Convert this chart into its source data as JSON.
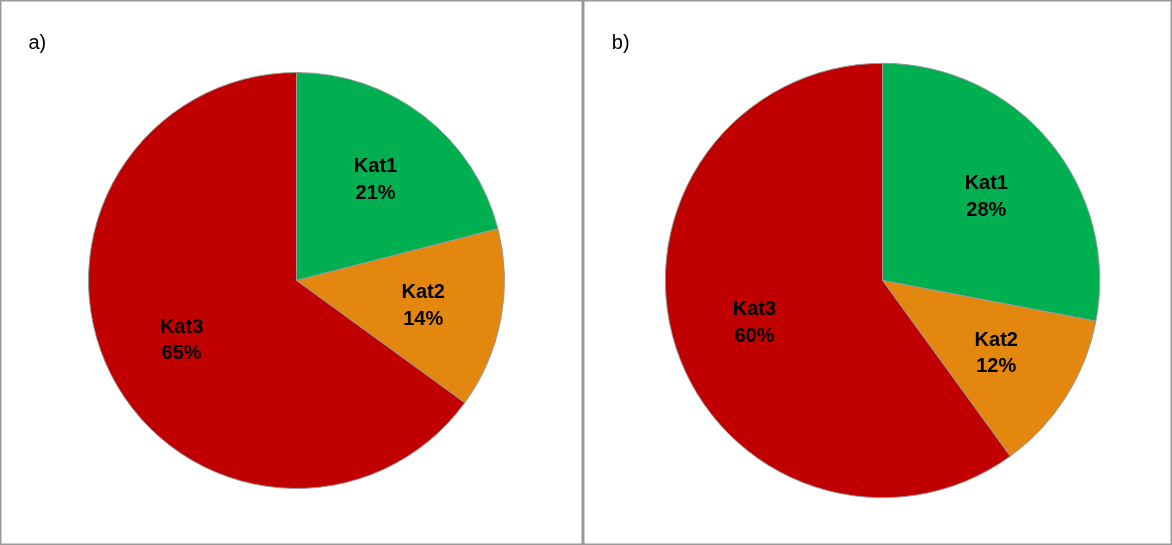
{
  "chart_data": [
    {
      "type": "pie",
      "title": "a)",
      "categories": [
        "Kat1",
        "Kat2",
        "Kat3"
      ],
      "values": [
        21,
        14,
        65
      ],
      "colors": [
        "#00b050",
        "#e3870e",
        "#c00000"
      ],
      "value_labels": [
        "21%",
        "14%",
        "65%"
      ],
      "legend": false
    },
    {
      "type": "pie",
      "title": "b)",
      "categories": [
        "Kat1",
        "Kat2",
        "Kat3"
      ],
      "values": [
        28,
        12,
        60
      ],
      "colors": [
        "#00b050",
        "#e3870e",
        "#c00000"
      ],
      "value_labels": [
        "28%",
        "12%",
        "60%"
      ],
      "legend": false
    }
  ]
}
